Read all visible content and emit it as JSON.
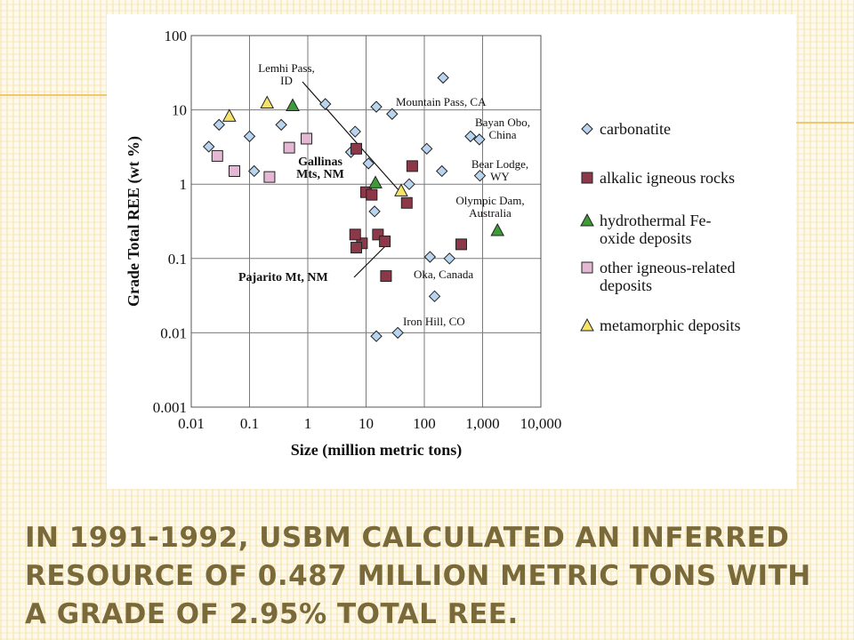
{
  "slide": {
    "title": "In 1991-1992, USBM calculated an inferred resource of 0.487 million metric tons with a grade of 2.95% total REE."
  },
  "colors": {
    "carbonatite": "#b8d4ee",
    "alkalic": "#8c3848",
    "hydrothermal": "#3f9a3a",
    "other_igneous": "#e4b8d2",
    "metamorphic": "#f4e26a",
    "title_text": "#7a6a3a"
  },
  "chart_data": {
    "type": "scatter",
    "title": "",
    "xlabel": "Size (million metric tons)",
    "ylabel": "Grade Total REE (wt %)",
    "x_scale": "log",
    "y_scale": "log",
    "xlim": [
      0.01,
      10000
    ],
    "ylim": [
      0.001,
      100
    ],
    "grid": true,
    "x_ticks": [
      0.01,
      0.1,
      1,
      10,
      100,
      1000,
      10000
    ],
    "x_tick_labels": [
      "0.01",
      "0.1",
      "1",
      "10",
      "100",
      "1,000",
      "10,000"
    ],
    "y_ticks": [
      0.001,
      0.01,
      0.1,
      1,
      10,
      100
    ],
    "y_tick_labels": [
      "0.001",
      "0.01",
      "0.1",
      "1",
      "10",
      "100"
    ],
    "legend_position": "right",
    "series": [
      {
        "name": "carbonatite",
        "marker": "diamond",
        "points": [
          [
            0.02,
            3.2
          ],
          [
            0.03,
            6.3
          ],
          [
            0.1,
            4.4
          ],
          [
            0.12,
            1.5
          ],
          [
            0.35,
            6.3
          ],
          [
            2,
            12
          ],
          [
            5.5,
            2.7
          ],
          [
            6.5,
            5.1
          ],
          [
            11,
            1.9
          ],
          [
            14,
            0.43
          ],
          [
            15,
            11
          ],
          [
            28,
            8.8
          ],
          [
            55,
            1.0
          ],
          [
            110,
            3.0
          ],
          [
            125,
            0.105
          ],
          [
            150,
            0.031
          ],
          [
            200,
            1.5
          ],
          [
            210,
            27
          ],
          [
            270,
            0.1
          ],
          [
            620,
            4.4
          ],
          [
            880,
            4.0
          ],
          [
            900,
            1.3
          ],
          [
            15,
            0.009
          ],
          [
            35,
            0.01
          ]
        ]
      },
      {
        "name": "alkalic igneous rocks",
        "marker": "square",
        "points": [
          [
            6.8,
            3.0
          ],
          [
            10,
            0.78
          ],
          [
            12.5,
            0.72
          ],
          [
            8.5,
            0.16
          ],
          [
            6.5,
            0.21
          ],
          [
            6.8,
            0.14
          ],
          [
            16,
            0.21
          ],
          [
            21,
            0.17
          ],
          [
            22,
            0.058
          ],
          [
            50,
            0.56
          ],
          [
            62,
            1.75
          ],
          [
            430,
            0.155
          ]
        ]
      },
      {
        "name": "hydrothermal Fe-oxide deposits",
        "marker": "triangle",
        "points": [
          [
            0.55,
            11.5
          ],
          [
            14.5,
            1.05
          ],
          [
            1800,
            0.24
          ]
        ]
      },
      {
        "name": "other igneous-related deposits",
        "marker": "square",
        "points": [
          [
            0.028,
            2.4
          ],
          [
            0.055,
            1.5
          ],
          [
            0.22,
            1.25
          ],
          [
            0.48,
            3.1
          ],
          [
            0.95,
            4.1
          ]
        ]
      },
      {
        "name": "metamorphic deposits",
        "marker": "triangle",
        "points": [
          [
            0.045,
            8.3
          ],
          [
            0.2,
            12.5
          ],
          [
            40,
            0.82
          ]
        ]
      }
    ],
    "legend": [
      {
        "label_lines": [
          "carbonatite"
        ]
      },
      {
        "label_lines": [
          "alkalic igneous rocks"
        ]
      },
      {
        "label_lines": [
          "hydrothermal Fe-",
          "oxide deposits"
        ]
      },
      {
        "label_lines": [
          "other igneous-related",
          "deposits"
        ]
      },
      {
        "label_lines": [
          "metamorphic deposits"
        ]
      }
    ],
    "annotations": [
      {
        "id": "lemhi",
        "lines": [
          "Lemhi Pass,",
          "ID"
        ],
        "bold": false
      },
      {
        "id": "mountain_pass",
        "lines": [
          "Mountain Pass, CA"
        ],
        "bold": false
      },
      {
        "id": "bayan_obo",
        "lines": [
          "Bayan Obo,",
          "China"
        ],
        "bold": false
      },
      {
        "id": "bear_lodge",
        "lines": [
          "Bear Lodge,",
          "WY"
        ],
        "bold": false
      },
      {
        "id": "olympic_dam",
        "lines": [
          "Olympic Dam,",
          "Australia"
        ],
        "bold": false
      },
      {
        "id": "oka",
        "lines": [
          "Oka, Canada"
        ],
        "bold": false
      },
      {
        "id": "iron_hill",
        "lines": [
          "Iron Hill, CO"
        ],
        "bold": false
      },
      {
        "id": "gallinas",
        "lines": [
          "Gallinas",
          "Mts, NM"
        ],
        "bold": true
      },
      {
        "id": "pajarito",
        "lines": [
          "Pajarito Mt, NM"
        ],
        "bold": true
      }
    ]
  }
}
